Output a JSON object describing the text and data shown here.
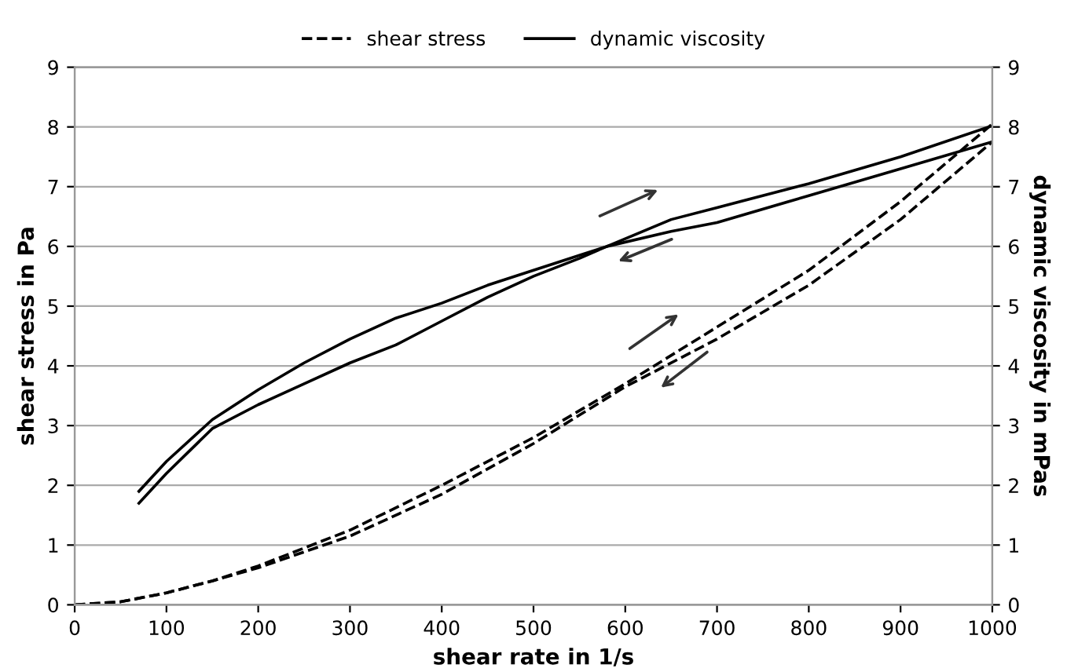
{
  "chart_data": {
    "type": "line",
    "xlabel": "shear rate in 1/s",
    "ylabel": "shear stress in Pa",
    "y2label": "dynamic viscosity in mPas",
    "xlim": [
      0,
      1000
    ],
    "xticks": [
      0,
      100,
      200,
      300,
      400,
      500,
      600,
      700,
      800,
      900,
      1000
    ],
    "ylim": [
      0,
      9
    ],
    "yticks": [
      0,
      1,
      2,
      3,
      4,
      5,
      6,
      7,
      8,
      9
    ],
    "y2lim": [
      0,
      9
    ],
    "y2ticks": [
      0,
      1,
      2,
      3,
      4,
      5,
      6,
      7,
      8,
      9
    ],
    "grid": "y",
    "legend": "top",
    "marker": "none",
    "series": [
      {
        "name": "shear stress",
        "color": "#000000",
        "line_style": "dashed",
        "x": [
          0,
          50,
          100,
          150,
          200,
          300,
          400,
          500,
          600,
          700,
          800,
          900,
          1000
        ],
        "values": [
          0,
          0.05,
          0.2,
          0.4,
          0.65,
          1.25,
          2.0,
          2.8,
          3.7,
          4.65,
          5.6,
          6.75,
          8.05
        ]
      },
      {
        "color": "#000000",
        "line_style": "dashed",
        "x": [
          0,
          50,
          100,
          150,
          200,
          300,
          400,
          500,
          600,
          700,
          800,
          900,
          1000
        ],
        "values": [
          0,
          0.05,
          0.2,
          0.4,
          0.62,
          1.15,
          1.85,
          2.7,
          3.65,
          4.45,
          5.35,
          6.45,
          7.75
        ]
      },
      {
        "name": "dynamic viscosity",
        "color": "#000000",
        "line_style": "solid",
        "axis": "y2",
        "x": [
          70,
          100,
          150,
          200,
          250,
          300,
          350,
          400,
          450,
          500,
          550,
          580,
          650,
          700,
          800,
          900,
          1000
        ],
        "values": [
          1.9,
          2.4,
          3.1,
          3.6,
          4.05,
          4.45,
          4.8,
          5.05,
          5.35,
          5.6,
          5.85,
          6.0,
          6.25,
          6.4,
          6.85,
          7.3,
          7.75
        ]
      },
      {
        "color": "#000000",
        "line_style": "solid",
        "axis": "y2",
        "x": [
          70,
          100,
          150,
          200,
          250,
          300,
          350,
          400,
          450,
          500,
          550,
          580,
          650,
          700,
          800,
          900,
          1000
        ],
        "values": [
          1.7,
          2.2,
          2.95,
          3.35,
          3.7,
          4.05,
          4.35,
          4.75,
          5.15,
          5.5,
          5.8,
          6.0,
          6.45,
          6.65,
          7.05,
          7.5,
          8.02
        ]
      }
    ]
  }
}
